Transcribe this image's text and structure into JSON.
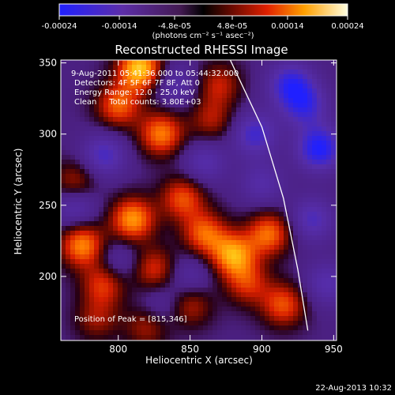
{
  "chart_data": {
    "type": "heatmap",
    "title": "Reconstructed RHESSI Image",
    "colorbar": {
      "ticks": [
        "-0.00024",
        "-0.00014",
        "-4.8e-05",
        "4.8e-05",
        "0.00014",
        "0.00024"
      ],
      "tick_values": [
        -0.00024,
        -0.00014,
        -4.8e-05,
        4.8e-05,
        0.00014,
        0.00024
      ],
      "range": [
        -0.00024,
        0.00024
      ],
      "unit_label": "(photons cm⁻² s⁻¹ asec⁻²)"
    },
    "xlabel": "Heliocentric X (arcsec)",
    "ylabel": "Heliocentric Y (arcsec)",
    "xlim": [
      760,
      952
    ],
    "ylim": [
      155,
      352
    ],
    "xticks": [
      800,
      850,
      900,
      950
    ],
    "yticks": [
      200,
      250,
      300,
      350
    ],
    "annotations": [
      "9-Aug-2011 05:41:36.000 to 05:44:32.000",
      "Detectors: 4F 5F 6F 7F 8F, Att 0",
      "Energy Range: 12.0 - 25.0 keV",
      "Clean     Total counts: 3.80E+03"
    ],
    "peak_label": "Position of Peak = [815,346]",
    "peak": [
      815,
      346
    ],
    "limb": [
      [
        878,
        352
      ],
      [
        900,
        305
      ],
      [
        915,
        255
      ],
      [
        925,
        205
      ],
      [
        932,
        162
      ]
    ],
    "limb_color": "#ffffff",
    "blobs": [
      {
        "x": 815,
        "y": 346,
        "v": 0.00024
      },
      {
        "x": 800,
        "y": 320,
        "v": 0.00016
      },
      {
        "x": 830,
        "y": 300,
        "v": 0.00018
      },
      {
        "x": 770,
        "y": 265,
        "v": 0.00012
      },
      {
        "x": 810,
        "y": 240,
        "v": 0.0002
      },
      {
        "x": 775,
        "y": 222,
        "v": 0.00019
      },
      {
        "x": 790,
        "y": 195,
        "v": 0.00014
      },
      {
        "x": 825,
        "y": 205,
        "v": 0.00013
      },
      {
        "x": 845,
        "y": 255,
        "v": 0.00015
      },
      {
        "x": 860,
        "y": 230,
        "v": 0.00016
      },
      {
        "x": 880,
        "y": 215,
        "v": 0.0002
      },
      {
        "x": 905,
        "y": 230,
        "v": 0.00017
      },
      {
        "x": 915,
        "y": 180,
        "v": 0.00015
      },
      {
        "x": 890,
        "y": 195,
        "v": 0.00012
      },
      {
        "x": 850,
        "y": 180,
        "v": 0.00011
      },
      {
        "x": 820,
        "y": 165,
        "v": 0.0001
      },
      {
        "x": 865,
        "y": 310,
        "v": 0.0001
      },
      {
        "x": 870,
        "y": 335,
        "v": 0.00011
      },
      {
        "x": 785,
        "y": 170,
        "v": 9e-05
      },
      {
        "x": 920,
        "y": 335,
        "v": -0.00016
      },
      {
        "x": 940,
        "y": 290,
        "v": -0.0002
      },
      {
        "x": 935,
        "y": 240,
        "v": -0.00012
      },
      {
        "x": 930,
        "y": 320,
        "v": -0.00014
      },
      {
        "x": 895,
        "y": 300,
        "v": -0.00014
      },
      {
        "x": 770,
        "y": 250,
        "v": -0.00012
      },
      {
        "x": 790,
        "y": 285,
        "v": -0.00013
      },
      {
        "x": 800,
        "y": 210,
        "v": -8e-05
      },
      {
        "x": 850,
        "y": 200,
        "v": -8e-05
      },
      {
        "x": 860,
        "y": 280,
        "v": -0.0001
      },
      {
        "x": 945,
        "y": 195,
        "v": -0.0001
      },
      {
        "x": 900,
        "y": 265,
        "v": -9e-05
      },
      {
        "x": 830,
        "y": 180,
        "v": -7e-05
      },
      {
        "x": 840,
        "y": 335,
        "v": -9e-05
      }
    ]
  },
  "footer": {
    "date": "22-Aug-2013 10:32"
  }
}
